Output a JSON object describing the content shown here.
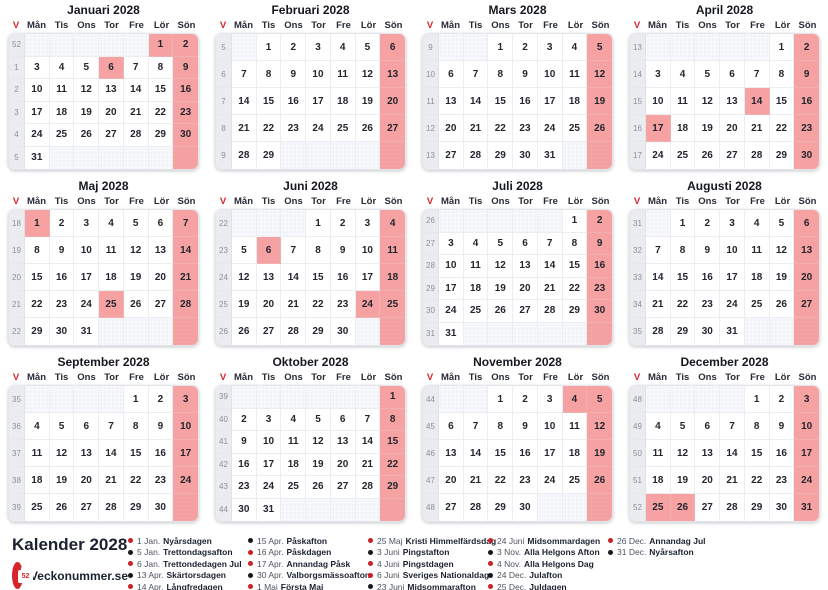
{
  "weekday_headers": [
    "V",
    "Mån",
    "Tis",
    "Ons",
    "Tor",
    "Fre",
    "Lör",
    "Sön"
  ],
  "colors": {
    "accent_red": "#d8232a",
    "holiday_highlight": "#f6a2a2",
    "red_dot": "#cc2026",
    "black_dot": "#14181f"
  },
  "months": [
    {
      "name": "Januari 2028",
      "weeks": [
        {
          "v": "52",
          "days": [
            "",
            "",
            "",
            "",
            "",
            "1",
            "2"
          ],
          "red": [
            5
          ]
        },
        {
          "v": "1",
          "days": [
            "3",
            "4",
            "5",
            "6",
            "7",
            "8",
            "9"
          ],
          "red": [
            3
          ]
        },
        {
          "v": "2",
          "days": [
            "10",
            "11",
            "12",
            "13",
            "14",
            "15",
            "16"
          ]
        },
        {
          "v": "3",
          "days": [
            "17",
            "18",
            "19",
            "20",
            "21",
            "22",
            "23"
          ]
        },
        {
          "v": "4",
          "days": [
            "24",
            "25",
            "26",
            "27",
            "28",
            "29",
            "30"
          ]
        },
        {
          "v": "5",
          "days": [
            "31",
            "",
            "",
            "",
            "",
            "",
            ""
          ]
        }
      ]
    },
    {
      "name": "Februari 2028",
      "weeks": [
        {
          "v": "5",
          "days": [
            "",
            "1",
            "2",
            "3",
            "4",
            "5",
            "6"
          ]
        },
        {
          "v": "6",
          "days": [
            "7",
            "8",
            "9",
            "10",
            "11",
            "12",
            "13"
          ]
        },
        {
          "v": "7",
          "days": [
            "14",
            "15",
            "16",
            "17",
            "18",
            "19",
            "20"
          ]
        },
        {
          "v": "8",
          "days": [
            "21",
            "22",
            "23",
            "24",
            "25",
            "26",
            "27"
          ]
        },
        {
          "v": "9",
          "days": [
            "28",
            "29",
            "",
            "",
            "",
            "",
            ""
          ]
        }
      ]
    },
    {
      "name": "Mars 2028",
      "weeks": [
        {
          "v": "9",
          "days": [
            "",
            "",
            "1",
            "2",
            "3",
            "4",
            "5"
          ]
        },
        {
          "v": "10",
          "days": [
            "6",
            "7",
            "8",
            "9",
            "10",
            "11",
            "12"
          ]
        },
        {
          "v": "11",
          "days": [
            "13",
            "14",
            "15",
            "16",
            "17",
            "18",
            "19"
          ]
        },
        {
          "v": "12",
          "days": [
            "20",
            "21",
            "22",
            "23",
            "24",
            "25",
            "26"
          ]
        },
        {
          "v": "13",
          "days": [
            "27",
            "28",
            "29",
            "30",
            "31",
            "",
            ""
          ]
        }
      ]
    },
    {
      "name": "April 2028",
      "weeks": [
        {
          "v": "13",
          "days": [
            "",
            "",
            "",
            "",
            "",
            "1",
            "2"
          ]
        },
        {
          "v": "14",
          "days": [
            "3",
            "4",
            "5",
            "6",
            "7",
            "8",
            "9"
          ]
        },
        {
          "v": "15",
          "days": [
            "10",
            "11",
            "12",
            "13",
            "14",
            "15",
            "16"
          ],
          "red": [
            4
          ]
        },
        {
          "v": "16",
          "days": [
            "17",
            "18",
            "19",
            "20",
            "21",
            "22",
            "23"
          ],
          "red": [
            0
          ]
        },
        {
          "v": "17",
          "days": [
            "24",
            "25",
            "26",
            "27",
            "28",
            "29",
            "30"
          ]
        }
      ]
    },
    {
      "name": "Maj 2028",
      "weeks": [
        {
          "v": "18",
          "days": [
            "1",
            "2",
            "3",
            "4",
            "5",
            "6",
            "7"
          ],
          "red": [
            0
          ]
        },
        {
          "v": "19",
          "days": [
            "8",
            "9",
            "10",
            "11",
            "12",
            "13",
            "14"
          ]
        },
        {
          "v": "20",
          "days": [
            "15",
            "16",
            "17",
            "18",
            "19",
            "20",
            "21"
          ]
        },
        {
          "v": "21",
          "days": [
            "22",
            "23",
            "24",
            "25",
            "26",
            "27",
            "28"
          ],
          "red": [
            3
          ]
        },
        {
          "v": "22",
          "days": [
            "29",
            "30",
            "31",
            "",
            "",
            "",
            ""
          ]
        }
      ]
    },
    {
      "name": "Juni 2028",
      "weeks": [
        {
          "v": "22",
          "days": [
            "",
            "",
            "",
            "1",
            "2",
            "3",
            "4"
          ]
        },
        {
          "v": "23",
          "days": [
            "5",
            "6",
            "7",
            "8",
            "9",
            "10",
            "11"
          ],
          "red": [
            1
          ]
        },
        {
          "v": "24",
          "days": [
            "12",
            "13",
            "14",
            "15",
            "16",
            "17",
            "18"
          ]
        },
        {
          "v": "25",
          "days": [
            "19",
            "20",
            "21",
            "22",
            "23",
            "24",
            "25"
          ],
          "red": [
            5
          ]
        },
        {
          "v": "26",
          "days": [
            "26",
            "27",
            "28",
            "29",
            "30",
            "",
            ""
          ]
        }
      ]
    },
    {
      "name": "Juli 2028",
      "weeks": [
        {
          "v": "26",
          "days": [
            "",
            "",
            "",
            "",
            "",
            "1",
            "2"
          ]
        },
        {
          "v": "27",
          "days": [
            "3",
            "4",
            "5",
            "6",
            "7",
            "8",
            "9"
          ]
        },
        {
          "v": "28",
          "days": [
            "10",
            "11",
            "12",
            "13",
            "14",
            "15",
            "16"
          ]
        },
        {
          "v": "29",
          "days": [
            "17",
            "18",
            "19",
            "20",
            "21",
            "22",
            "23"
          ]
        },
        {
          "v": "30",
          "days": [
            "24",
            "25",
            "26",
            "27",
            "28",
            "29",
            "30"
          ]
        },
        {
          "v": "31",
          "days": [
            "31",
            "",
            "",
            "",
            "",
            "",
            ""
          ]
        }
      ]
    },
    {
      "name": "Augusti 2028",
      "weeks": [
        {
          "v": "31",
          "days": [
            "",
            "1",
            "2",
            "3",
            "4",
            "5",
            "6"
          ]
        },
        {
          "v": "32",
          "days": [
            "7",
            "8",
            "9",
            "10",
            "11",
            "12",
            "13"
          ]
        },
        {
          "v": "33",
          "days": [
            "14",
            "15",
            "16",
            "17",
            "18",
            "19",
            "20"
          ]
        },
        {
          "v": "34",
          "days": [
            "21",
            "22",
            "23",
            "24",
            "25",
            "26",
            "27"
          ]
        },
        {
          "v": "35",
          "days": [
            "28",
            "29",
            "30",
            "31",
            "",
            "",
            ""
          ]
        }
      ]
    },
    {
      "name": "September 2028",
      "weeks": [
        {
          "v": "35",
          "days": [
            "",
            "",
            "",
            "",
            "1",
            "2",
            "3"
          ]
        },
        {
          "v": "36",
          "days": [
            "4",
            "5",
            "6",
            "7",
            "8",
            "9",
            "10"
          ]
        },
        {
          "v": "37",
          "days": [
            "11",
            "12",
            "13",
            "14",
            "15",
            "16",
            "17"
          ]
        },
        {
          "v": "38",
          "days": [
            "18",
            "19",
            "20",
            "21",
            "22",
            "23",
            "24"
          ]
        },
        {
          "v": "39",
          "days": [
            "25",
            "26",
            "27",
            "28",
            "29",
            "30",
            ""
          ]
        }
      ]
    },
    {
      "name": "Oktober 2028",
      "weeks": [
        {
          "v": "39",
          "days": [
            "",
            "",
            "",
            "",
            "",
            "",
            "1"
          ]
        },
        {
          "v": "40",
          "days": [
            "2",
            "3",
            "4",
            "5",
            "6",
            "7",
            "8"
          ]
        },
        {
          "v": "41",
          "days": [
            "9",
            "10",
            "11",
            "12",
            "13",
            "14",
            "15"
          ]
        },
        {
          "v": "42",
          "days": [
            "16",
            "17",
            "18",
            "19",
            "20",
            "21",
            "22"
          ]
        },
        {
          "v": "43",
          "days": [
            "23",
            "24",
            "25",
            "26",
            "27",
            "28",
            "29"
          ]
        },
        {
          "v": "44",
          "days": [
            "30",
            "31",
            "",
            "",
            "",
            "",
            ""
          ]
        }
      ]
    },
    {
      "name": "November 2028",
      "weeks": [
        {
          "v": "44",
          "days": [
            "",
            "",
            "1",
            "2",
            "3",
            "4",
            "5"
          ],
          "red": [
            5
          ]
        },
        {
          "v": "45",
          "days": [
            "6",
            "7",
            "8",
            "9",
            "10",
            "11",
            "12"
          ]
        },
        {
          "v": "46",
          "days": [
            "13",
            "14",
            "15",
            "16",
            "17",
            "18",
            "19"
          ]
        },
        {
          "v": "47",
          "days": [
            "20",
            "21",
            "22",
            "23",
            "24",
            "25",
            "26"
          ]
        },
        {
          "v": "48",
          "days": [
            "27",
            "28",
            "29",
            "30",
            "",
            "",
            ""
          ]
        }
      ]
    },
    {
      "name": "December 2028",
      "weeks": [
        {
          "v": "48",
          "days": [
            "",
            "",
            "",
            "",
            "1",
            "2",
            "3"
          ]
        },
        {
          "v": "49",
          "days": [
            "4",
            "5",
            "6",
            "7",
            "8",
            "9",
            "10"
          ]
        },
        {
          "v": "50",
          "days": [
            "11",
            "12",
            "13",
            "14",
            "15",
            "16",
            "17"
          ]
        },
        {
          "v": "51",
          "days": [
            "18",
            "19",
            "20",
            "21",
            "22",
            "23",
            "24"
          ]
        },
        {
          "v": "52",
          "days": [
            "25",
            "26",
            "27",
            "28",
            "29",
            "30",
            "31"
          ],
          "red": [
            0,
            1
          ]
        }
      ]
    }
  ],
  "footer": {
    "title": "Kalender 2028",
    "brand": "Veckonummer.se",
    "logo_badge": "52"
  },
  "legend": {
    "columns": [
      [
        {
          "dot": "red",
          "date": "1 Jan.",
          "name": "Nyårsdagen"
        },
        {
          "dot": "black",
          "date": "5 Jan.",
          "name": "Trettondagsafton"
        },
        {
          "dot": "red",
          "date": "6 Jan.",
          "name": "Trettondedagen Jul"
        },
        {
          "dot": "black",
          "date": "13 Apr.",
          "name": "Skärtorsdagen"
        },
        {
          "dot": "red",
          "date": "14 Apr.",
          "name": "Långfredagen"
        }
      ],
      [
        {
          "dot": "black",
          "date": "15 Apr.",
          "name": "Påskafton"
        },
        {
          "dot": "red",
          "date": "16 Apr.",
          "name": "Påskdagen"
        },
        {
          "dot": "red",
          "date": "17 Apr.",
          "name": "Annandag Påsk"
        },
        {
          "dot": "black",
          "date": "30 Apr.",
          "name": "Valborgsmässoafton"
        },
        {
          "dot": "red",
          "date": "1 Maj",
          "name": "Första Maj"
        }
      ],
      [
        {
          "dot": "red",
          "date": "25 Maj",
          "name": "Kristi Himmelfärdsdag"
        },
        {
          "dot": "black",
          "date": "3 Juni",
          "name": "Pingstafton"
        },
        {
          "dot": "red",
          "date": "4 Juni",
          "name": "Pingstdagen"
        },
        {
          "dot": "red",
          "date": "6 Juni",
          "name": "Sveriges Nationaldag"
        },
        {
          "dot": "black",
          "date": "23 Juni",
          "name": "Midsommarafton"
        }
      ],
      [
        {
          "dot": "red",
          "date": "24 Juni",
          "name": "Midsommardagen"
        },
        {
          "dot": "black",
          "date": "3 Nov.",
          "name": "Alla Helgons Afton"
        },
        {
          "dot": "red",
          "date": "4 Nov.",
          "name": "Alla Helgons Dag"
        },
        {
          "dot": "black",
          "date": "24 Dec.",
          "name": "Julafton"
        },
        {
          "dot": "red",
          "date": "25 Dec.",
          "name": "Juldagen"
        }
      ],
      [
        {
          "dot": "red",
          "date": "26 Dec.",
          "name": "Annandag Jul"
        },
        {
          "dot": "black",
          "date": "31 Dec.",
          "name": "Nyårsafton"
        }
      ]
    ]
  }
}
